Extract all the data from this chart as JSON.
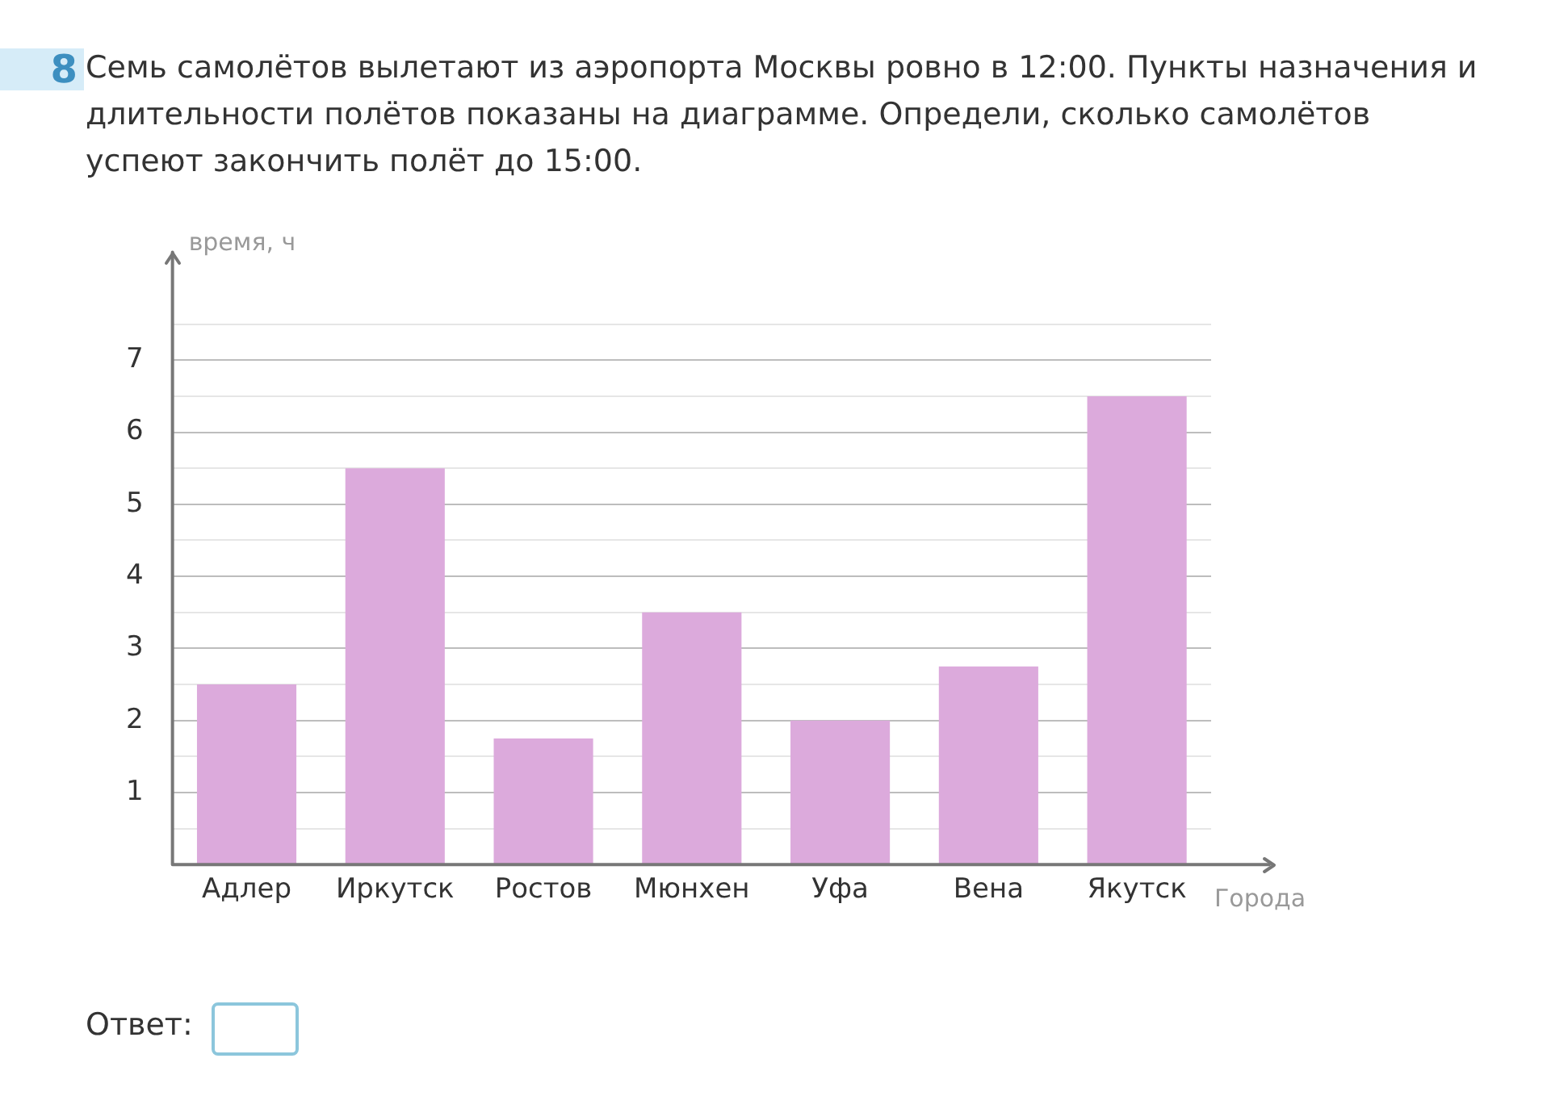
{
  "chart_data": {
    "type": "bar",
    "title": "Семь самолётов вылетают из аэропорта Москвы ровно в 12:00. Пункты назначения и длительности полётов показаны на диаграмме. Определи, сколько самолётов успеют закончить полёт до 15:00.",
    "annotations": [
      "8",
      "Ответ:"
    ],
    "xlabel": "Города",
    "ylabel": "время, ч",
    "categories": [
      "Адлер",
      "Иркутск",
      "Ростов",
      "Мюнхен",
      "Уфа",
      "Вена",
      "Якутск"
    ],
    "values": [
      2.5,
      5.5,
      1.75,
      3.5,
      2,
      2.75,
      6.5
    ],
    "color": "#dcaadc",
    "ylim": [
      0,
      8.5
    ],
    "yticks": [
      {
        "value": 0,
        "label": null
      },
      {
        "value": 0.5,
        "label": null
      },
      1,
      {
        "value": 1.5,
        "label": null
      },
      2,
      {
        "value": 2.5,
        "label": null
      },
      3,
      {
        "value": 3.5,
        "label": null
      },
      4,
      {
        "value": 4.5,
        "label": null
      },
      5,
      {
        "value": 5.5,
        "label": null
      },
      6,
      {
        "value": 6.5,
        "label": null
      },
      7,
      {
        "value": 7.5,
        "label": null
      }
    ],
    "grid": "y",
    "legend": false
  }
}
